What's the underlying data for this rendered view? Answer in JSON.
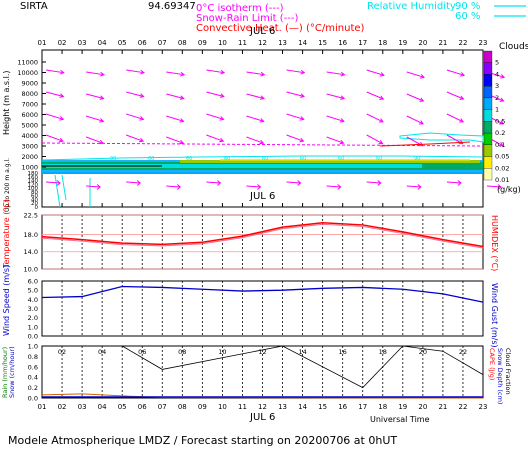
{
  "header": {
    "station": "SIRTA",
    "coords": "94.69347",
    "legend_isotherm": "0°C isotherm (---)",
    "legend_snow_rain": "Snow-Rain Limit (---)",
    "legend_convective": "Convective Heat. (—) (°C/minute)",
    "legend_rh": "Relative Humidity",
    "legend_rh_90": "90 %",
    "legend_rh_60": "60 %"
  },
  "date_label": "JUL  6",
  "footer": {
    "caption": "Modele Atmospherique LMDZ / Forecast starting on 20200706 at 0hUT",
    "universal_time": "Universal Time"
  },
  "colors": {
    "magenta": "#ff00ff",
    "red": "#ff0000",
    "blue": "#0000cc",
    "cyan": "#00e5ee",
    "green": "#008000",
    "black": "#000000"
  },
  "chart_data": [
    {
      "type": "heatmap",
      "name": "clouds-wind-panel",
      "x_ticks": [
        "01",
        "02",
        "03",
        "04",
        "05",
        "06",
        "07",
        "08",
        "09",
        "10",
        "11",
        "12",
        "13",
        "14",
        "15",
        "16",
        "17",
        "18",
        "19",
        "20",
        "21",
        "22",
        "23"
      ],
      "ylabel": "Height (m a.s.l.)",
      "ylabel_lower": "Up to 200 m a.g.l.",
      "y_ticks_upper": [
        "11000",
        "10000",
        "9000",
        "8000",
        "7000",
        "6000",
        "5000",
        "4000",
        "3000",
        "2000",
        "1000"
      ],
      "y_ticks_lower": [
        "180",
        "160",
        "140",
        "120",
        "100",
        "80",
        "60",
        "40",
        "20",
        "0"
      ],
      "colorbar_title": "Clouds",
      "colorbar_unit": "(g/kg)",
      "colorbar_ticks": [
        "5",
        "4",
        "3",
        "2",
        "1",
        "0.5",
        "0.2",
        "0.1",
        "0.05",
        "0.02",
        "0.01"
      ],
      "colorbar_colors": [
        "#cc00cc",
        "#8800ff",
        "#0000ff",
        "#0066ff",
        "#00aaff",
        "#00dddd",
        "#00aa66",
        "#00cc00",
        "#99cc00",
        "#ffee00",
        "#ffffaa"
      ],
      "contour_labels": [
        "90",
        "60",
        "60",
        "60",
        "60",
        "60",
        "60",
        "60",
        "90"
      ]
    },
    {
      "type": "line",
      "name": "temperature-panel",
      "ylabel": "Temperature (°C)",
      "ylabel_right": "HUMIDEX (°C)",
      "y_ticks": [
        "22.5",
        "18.0",
        "14.0",
        "10.0"
      ],
      "ylim": [
        10,
        22.5
      ],
      "x": [
        1,
        3,
        5,
        7,
        9,
        11,
        13,
        15,
        17,
        19,
        21,
        23
      ],
      "series": [
        {
          "name": "",
          "values": [
            17.5,
            16.8,
            16.0,
            15.7,
            16.2,
            17.6,
            19.7,
            20.7,
            20.2,
            18.6,
            16.8,
            15.2
          ]
        }
      ]
    },
    {
      "type": "line",
      "name": "wind-panel",
      "ylabel": "Wind Speed (m/s)",
      "ylabel_right": "Wind Gust (m/s)",
      "y_ticks": [
        "6.0",
        "5.0",
        "4.0",
        "3.0",
        "2.0",
        "1.0",
        "0.0"
      ],
      "ylim": [
        0,
        6
      ],
      "x": [
        1,
        3,
        5,
        7,
        9,
        11,
        13,
        15,
        17,
        19,
        21,
        23
      ],
      "series": [
        {
          "name": "",
          "values": [
            4.2,
            4.3,
            5.4,
            5.3,
            5.1,
            4.9,
            5.0,
            5.2,
            5.3,
            5.1,
            4.6,
            3.7
          ]
        }
      ]
    },
    {
      "type": "line",
      "name": "precip-panel",
      "ylabel": "Rain (mm/hour)",
      "ylabel_2": "Snow (cm/hour)",
      "ylabel_right": "CAPE (J/g)",
      "ylabel_right_2": "Snow Depth (cm)",
      "ylabel_right_3": "Cloud Fraction",
      "y_ticks": [
        "1.0",
        "0.8",
        "0.6",
        "0.4",
        "0.2",
        "0.0"
      ],
      "ylim": [
        0,
        1
      ],
      "x_ticks": [
        "01",
        "02",
        "03",
        "04",
        "05",
        "06",
        "07",
        "08",
        "09",
        "10",
        "11",
        "12",
        "13",
        "14",
        "15",
        "16",
        "17",
        "18",
        "19",
        "20",
        "21",
        "22",
        "23"
      ],
      "series": [
        {
          "name": "",
          "x": [
            1,
            5,
            7,
            13,
            17,
            19,
            21,
            23
          ],
          "values": [
            1,
            1,
            0.55,
            1,
            0.2,
            1,
            0.9,
            0.45
          ]
        },
        {
          "name": "",
          "x": [
            1,
            3,
            5,
            7,
            23
          ],
          "values": [
            0.06,
            0.08,
            0.04,
            0.01,
            0.0
          ]
        }
      ]
    }
  ]
}
